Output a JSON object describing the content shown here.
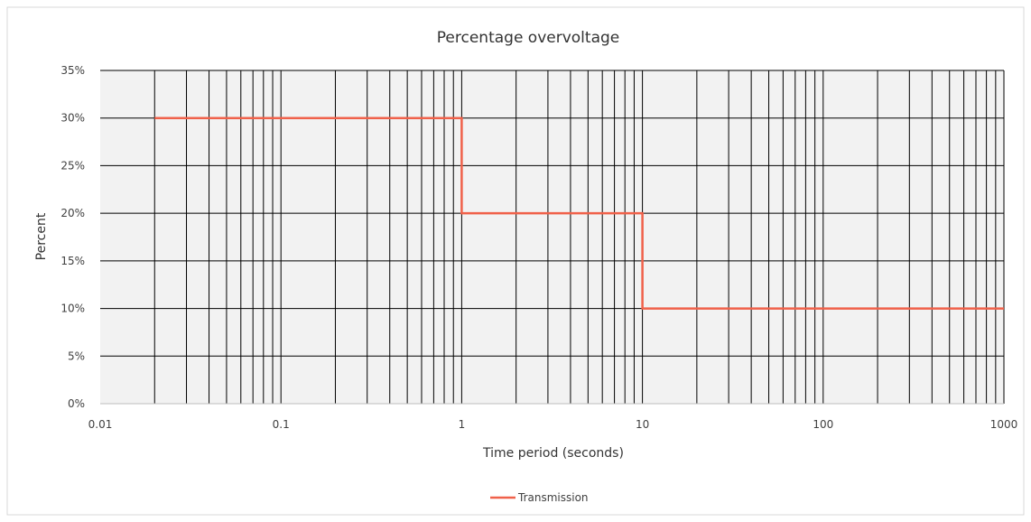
{
  "chart_data": {
    "type": "line",
    "title": "Percentage overvoltage",
    "xlabel": "Time period (seconds)",
    "ylabel": "Percent",
    "x_scale": "log",
    "xlim": [
      0.01,
      1000
    ],
    "ylim": [
      0,
      0.35
    ],
    "x_ticks": [
      {
        "value": 0.01,
        "label": "0.01"
      },
      {
        "value": 0.1,
        "label": "0.1"
      },
      {
        "value": 1,
        "label": "1"
      },
      {
        "value": 10,
        "label": "10"
      },
      {
        "value": 100,
        "label": "100"
      },
      {
        "value": 1000,
        "label": "1000"
      }
    ],
    "y_ticks": [
      {
        "value": 0,
        "label": "0%"
      },
      {
        "value": 0.05,
        "label": "5%"
      },
      {
        "value": 0.1,
        "label": "10%"
      },
      {
        "value": 0.15,
        "label": "15%"
      },
      {
        "value": 0.2,
        "label": "20%"
      },
      {
        "value": 0.25,
        "label": "25%"
      },
      {
        "value": 0.3,
        "label": "30%"
      },
      {
        "value": 0.35,
        "label": "35%"
      }
    ],
    "grid": true,
    "legend_position": "bottom",
    "series": [
      {
        "name": "Transmission",
        "color": "#f0614a",
        "points": [
          {
            "x": 0.02,
            "y": 0.3
          },
          {
            "x": 1,
            "y": 0.3
          },
          {
            "x": 1,
            "y": 0.2
          },
          {
            "x": 10,
            "y": 0.2
          },
          {
            "x": 10,
            "y": 0.1
          },
          {
            "x": 1000,
            "y": 0.1
          }
        ]
      }
    ]
  },
  "colors": {
    "plot_background": "#f2f2f2",
    "grid_line": "#000000",
    "frame_border": "#d9d9d9"
  }
}
